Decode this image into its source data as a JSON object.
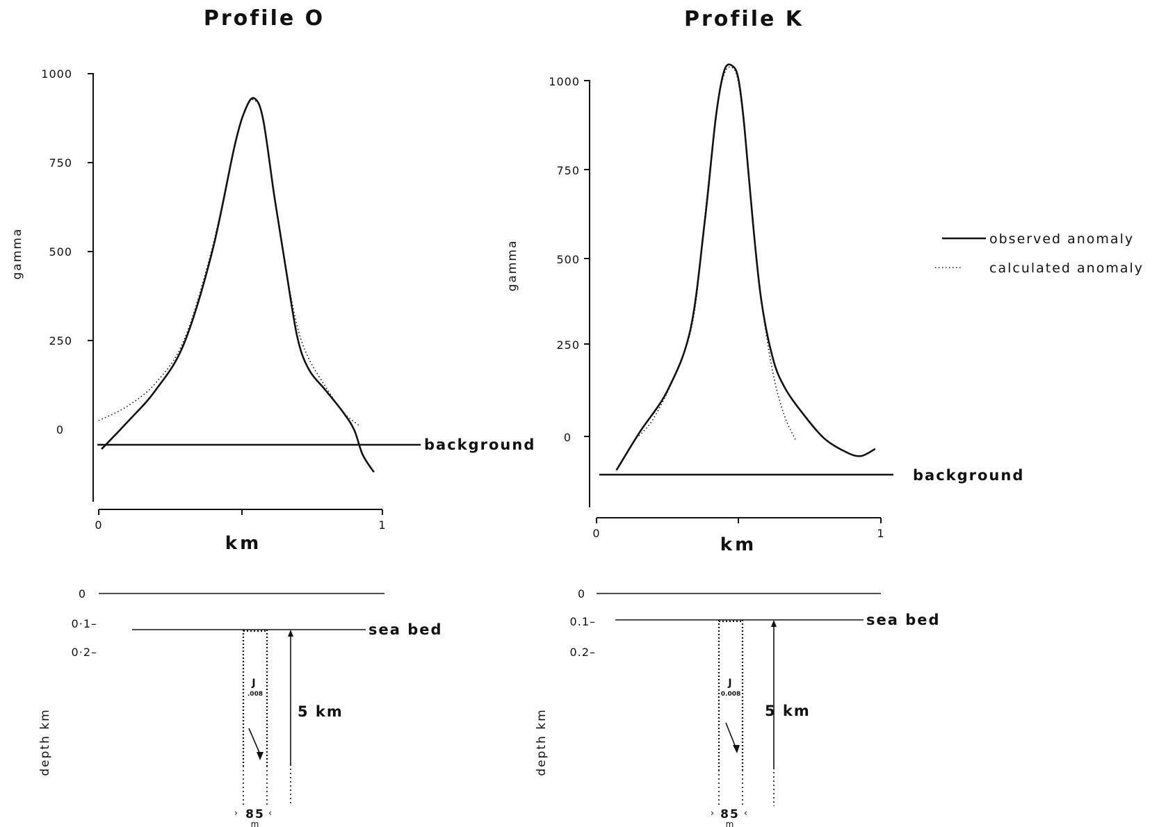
{
  "legend": {
    "observed": "observed anomaly",
    "calculated": "calculated anomaly"
  },
  "chart_data": [
    {
      "id": "O",
      "type": "line",
      "title": "Profile O",
      "xlabel": "km",
      "ylabel": "gamma",
      "xticks": [
        "0",
        "1"
      ],
      "yticks": [
        "1000",
        "750",
        "500",
        "250",
        "0"
      ],
      "xlim": [
        0,
        1
      ],
      "ylim": [
        -190,
        1000
      ],
      "background_label": "background",
      "background_value": -40,
      "series": [
        {
          "name": "observed anomaly",
          "style": "solid",
          "x": [
            0.01,
            0.1,
            0.2,
            0.3,
            0.4,
            0.48,
            0.52,
            0.55,
            0.58,
            0.62,
            0.66,
            0.7,
            0.74,
            0.8,
            0.86,
            0.9,
            0.93,
            0.97
          ],
          "y": [
            -55,
            20,
            110,
            240,
            500,
            800,
            905,
            930,
            870,
            650,
            450,
            260,
            170,
            110,
            50,
            0,
            -70,
            -120
          ]
        },
        {
          "name": "calculated anomaly",
          "style": "dotted",
          "x": [
            0.0,
            0.1,
            0.2,
            0.3,
            0.4,
            0.48,
            0.52,
            0.55,
            0.58,
            0.62,
            0.66,
            0.7,
            0.74,
            0.8,
            0.86,
            0.92
          ],
          "y": [
            25,
            65,
            130,
            250,
            510,
            800,
            905,
            925,
            870,
            650,
            450,
            290,
            200,
            120,
            50,
            10
          ]
        }
      ],
      "section": {
        "ylabel": "depth  km",
        "yticks": [
          "0",
          "0·1–",
          "0·2–"
        ],
        "seabed_label": "sea bed",
        "dike_depth_label": "5 km",
        "width_label": "85",
        "width_unit": "m",
        "susceptibility_label": "J",
        "susceptibility_value": ".008"
      }
    },
    {
      "id": "K",
      "type": "line",
      "title": "Profile K",
      "xlabel": "km",
      "ylabel": "gamma",
      "xticks": [
        "0",
        "1"
      ],
      "yticks": [
        "1000",
        "750",
        "500",
        "250",
        "0"
      ],
      "xlim": [
        0,
        1
      ],
      "ylim": [
        -190,
        1050
      ],
      "background_label": "background",
      "background_value": -105,
      "series": [
        {
          "name": "observed anomaly",
          "style": "solid",
          "x": [
            0.07,
            0.15,
            0.25,
            0.33,
            0.38,
            0.42,
            0.45,
            0.48,
            0.5,
            0.52,
            0.55,
            0.58,
            0.62,
            0.66,
            0.72,
            0.8,
            0.88,
            0.93,
            0.98
          ],
          "y": [
            -95,
            10,
            130,
            300,
            600,
            900,
            1030,
            1040,
            1000,
            870,
            600,
            380,
            220,
            140,
            70,
            -5,
            -45,
            -55,
            -35
          ]
        },
        {
          "name": "calculated anomaly",
          "style": "dotted",
          "x": [
            0.14,
            0.2,
            0.28,
            0.34,
            0.38,
            0.42,
            0.45,
            0.48,
            0.5,
            0.52,
            0.55,
            0.58,
            0.62,
            0.66,
            0.7
          ],
          "y": [
            -5,
            50,
            180,
            330,
            610,
            900,
            1020,
            1035,
            990,
            860,
            610,
            380,
            180,
            60,
            -10
          ]
        }
      ],
      "section": {
        "ylabel": "depth  km",
        "yticks": [
          "0",
          "0.1–",
          "0.2–"
        ],
        "seabed_label": "sea bed",
        "dike_depth_label": "5 km",
        "width_label": "85",
        "width_unit": "m",
        "susceptibility_label": "J",
        "susceptibility_value": "0.008"
      }
    }
  ]
}
